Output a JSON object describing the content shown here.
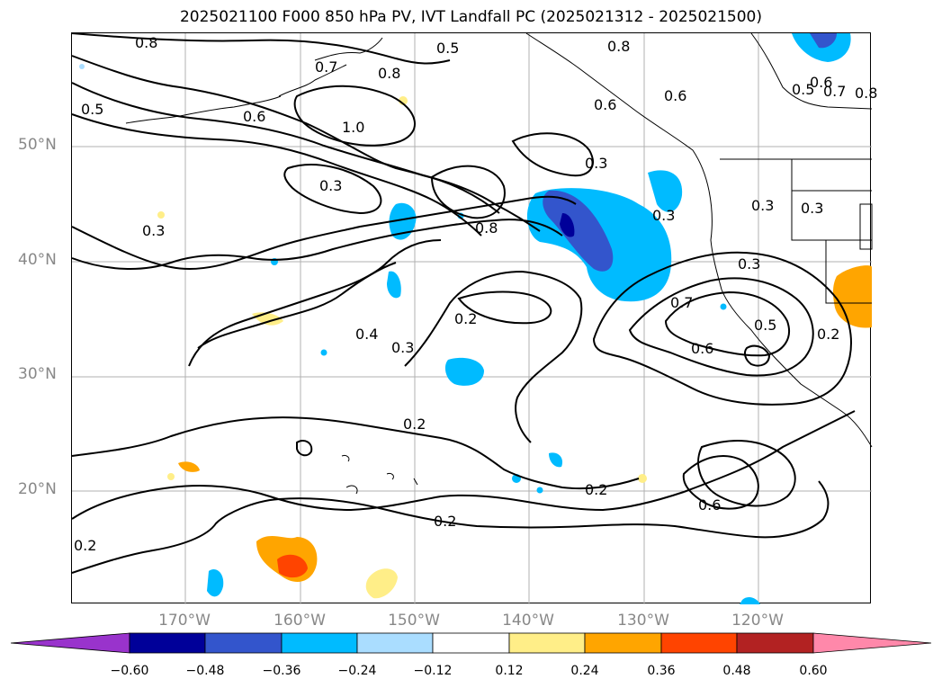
{
  "title": "2025021100 F000 850 hPa PV, IVT Landfall PC (2025021312 - 2025021500)",
  "latitude_labels": [
    "50°N",
    "40°N",
    "30°N",
    "20°N"
  ],
  "longitude_labels": [
    "170°W",
    "160°W",
    "150°W",
    "140°W",
    "130°W",
    "120°W"
  ],
  "colorbar": {
    "ticks": [
      "−0.60",
      "−0.48",
      "−0.36",
      "−0.24",
      "−0.12",
      "0.12",
      "0.24",
      "0.36",
      "0.48",
      "0.60"
    ],
    "colors": [
      "#9933cc",
      "#000099",
      "#3355cc",
      "#00bbff",
      "#aaddff",
      "#ffffff",
      "#ffee88",
      "#ffa500",
      "#ff4400",
      "#b22222",
      "#ff88aa"
    ]
  },
  "contour_labels": [
    "0.8",
    "0.5",
    "0.8",
    "0.7",
    "0.8",
    "0.5",
    "0.6",
    "1.0",
    "0.6",
    "0.6",
    "0.5",
    "0.7",
    "0.6",
    "0.8",
    "0.3",
    "0.3",
    "0.8",
    "0.3",
    "0.3",
    "0.3",
    "0.3",
    "0.3",
    "0.2",
    "0.4",
    "0.3",
    "0.7",
    "0.6",
    "0.5",
    "0.2",
    "0.2",
    "0.2",
    "0.2",
    "0.6",
    "0.2"
  ],
  "colors": {
    "shading_blue": "#00bbff",
    "shading_orange": "#ffa500"
  }
}
